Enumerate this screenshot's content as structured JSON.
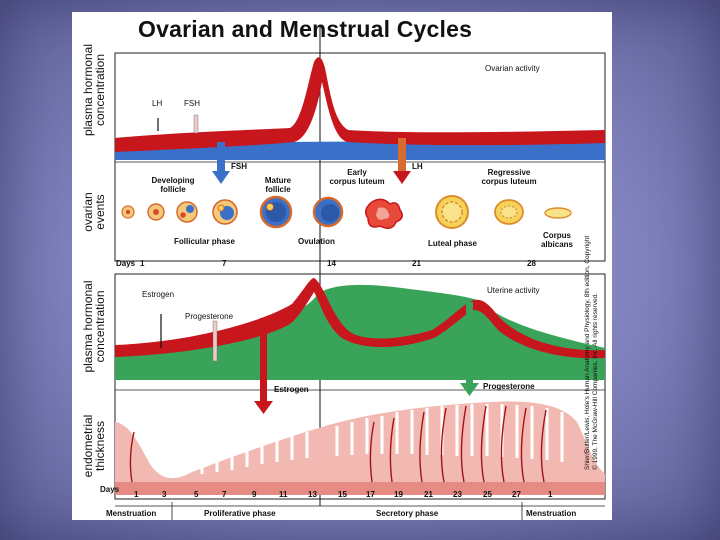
{
  "title": "Ovarian and Menstrual Cycles",
  "side_labels": {
    "plasma_hormonal_1": [
      "plasma hormonal",
      "concentration"
    ],
    "ovarian_events": [
      "ovarian",
      "events"
    ],
    "plasma_hormonal_2": [
      "plasma hormonal",
      "concentration"
    ],
    "endometrial": [
      "endometrial",
      "thickness"
    ]
  },
  "ovarian_activity": {
    "panel_label": "Ovarian activity",
    "lh": "LH",
    "fsh": "FSH",
    "arrow_fsh": "FSH",
    "arrow_lh": "LH"
  },
  "ovarian_events": {
    "developing_follicle": [
      "Developing",
      "follicle"
    ],
    "mature_follicle": [
      "Mature",
      "follicle"
    ],
    "early_corpus_luteum": [
      "Early",
      "corpus luteum"
    ],
    "regressive_corpus_luteum": [
      "Regressive",
      "corpus luteum"
    ],
    "follicular_phase": "Follicular phase",
    "ovulation": "Ovulation",
    "luteal_phase": "Luteal phase",
    "corpus_albicans": [
      "Corpus",
      "albicans"
    ]
  },
  "days_top": {
    "label": "Days",
    "ticks": [
      "1",
      "7",
      "14",
      "21",
      "28"
    ]
  },
  "uterine_activity": {
    "panel_label": "Uterine activity",
    "estrogen": "Estrogen",
    "progesterone": "Progesterone",
    "arrow_estrogen": "Estrogen",
    "arrow_progesterone": "Progesterone"
  },
  "days_bottom": {
    "label": "Days",
    "ticks": [
      "1",
      "3",
      "5",
      "7",
      "9",
      "11",
      "13",
      "15",
      "17",
      "19",
      "21",
      "23",
      "25",
      "27",
      "1"
    ]
  },
  "phases": {
    "menstruation_1": "Menstruation",
    "proliferative": "Proliferative phase",
    "secretory": "Secretory phase",
    "menstruation_2": "Menstruation"
  },
  "credit": [
    "Shier/Butler/Lewis, Hole's Human Anatomy and Physiology, 8th edition, Copyright",
    "© 1999, The McGraw-Hill Companies, Inc. All rights reserved."
  ],
  "colors": {
    "red": "#c8161d",
    "blue": "#3a70c8",
    "green": "#3aa35a",
    "endometrium": "#f2b8b2",
    "vessels": "#a0141c"
  }
}
